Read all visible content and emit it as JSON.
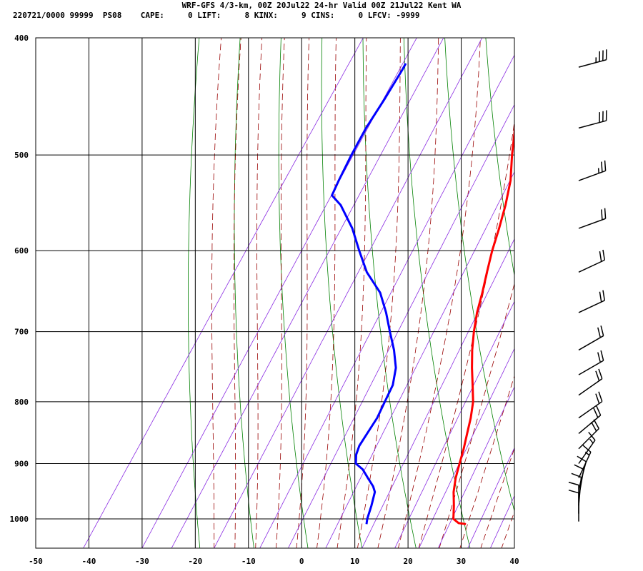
{
  "header": {
    "line1": "WRF-GFS 4/3-km, 00Z 20Jul22 24-hr Valid 00Z 21Jul22 Kent WA",
    "line2": "220721/0000 99999  PS08    CAPE:     0 LIFT:     8 KINX:     9 CINS:     0 LFCV: -9999"
  },
  "chart_data": {
    "type": "line",
    "title": "",
    "xlabel": "",
    "ylabel": "",
    "xlim": [
      -50,
      40
    ],
    "ylim_pressure": [
      1040,
      400
    ],
    "y_scale": "log-pressure (skew-T)",
    "x_ticks": [
      -50,
      -40,
      -30,
      -20,
      -10,
      0,
      10,
      20,
      30,
      40
    ],
    "y_ticks": [
      400,
      500,
      600,
      700,
      800,
      900,
      1000
    ],
    "grid": true,
    "background_lines": {
      "dry_adiabats_color": "#008000",
      "moist_adiabats_color": "#990000",
      "mixing_ratio_color": "#8a2be2"
    },
    "series": [
      {
        "color": "#ff0000",
        "points": [
          [
            1010,
            28.0
          ],
          [
            1008,
            26.5
          ],
          [
            1000,
            25.0
          ],
          [
            975,
            23.5
          ],
          [
            950,
            21.8
          ],
          [
            925,
            20.5
          ],
          [
            900,
            19.5
          ],
          [
            875,
            18.5
          ],
          [
            850,
            17.3
          ],
          [
            825,
            16.1
          ],
          [
            800,
            14.6
          ],
          [
            775,
            12.5
          ],
          [
            750,
            10.3
          ],
          [
            725,
            8.2
          ],
          [
            700,
            6.3
          ],
          [
            675,
            4.6
          ],
          [
            650,
            3.2
          ],
          [
            625,
            1.6
          ],
          [
            600,
            0.0
          ],
          [
            575,
            -1.4
          ],
          [
            550,
            -3.0
          ],
          [
            525,
            -5.0
          ],
          [
            500,
            -7.8
          ],
          [
            475,
            -10.5
          ],
          [
            450,
            -13.5
          ],
          [
            425,
            -16.5
          ],
          [
            423,
            -16.8
          ]
        ]
      },
      {
        "color": "#0000ff",
        "points": [
          [
            1010,
            9.3
          ],
          [
            1000,
            8.8
          ],
          [
            975,
            8.0
          ],
          [
            950,
            7.0
          ],
          [
            940,
            6.0
          ],
          [
            925,
            4.0
          ],
          [
            910,
            2.0
          ],
          [
            900,
            0.0
          ],
          [
            885,
            -1.0
          ],
          [
            870,
            -1.5
          ],
          [
            850,
            -1.5
          ],
          [
            825,
            -1.5
          ],
          [
            800,
            -2.0
          ],
          [
            775,
            -2.5
          ],
          [
            750,
            -4.0
          ],
          [
            725,
            -6.5
          ],
          [
            700,
            -9.5
          ],
          [
            675,
            -12.5
          ],
          [
            650,
            -16.0
          ],
          [
            625,
            -21.0
          ],
          [
            600,
            -25.0
          ],
          [
            575,
            -29.0
          ],
          [
            550,
            -34.0
          ],
          [
            540,
            -36.8
          ],
          [
            525,
            -37.3
          ],
          [
            500,
            -38.0
          ],
          [
            475,
            -38.5
          ],
          [
            450,
            -38.5
          ],
          [
            425,
            -38.7
          ],
          [
            420,
            -38.8
          ]
        ]
      }
    ],
    "wind_barbs": [
      {
        "p": 423,
        "dir": 255,
        "spd": 35
      },
      {
        "p": 475,
        "dir": 255,
        "spd": 30
      },
      {
        "p": 525,
        "dir": 250,
        "spd": 25
      },
      {
        "p": 575,
        "dir": 250,
        "spd": 20
      },
      {
        "p": 625,
        "dir": 245,
        "spd": 20
      },
      {
        "p": 675,
        "dir": 245,
        "spd": 20
      },
      {
        "p": 725,
        "dir": 240,
        "spd": 20
      },
      {
        "p": 760,
        "dir": 240,
        "spd": 20
      },
      {
        "p": 790,
        "dir": 235,
        "spd": 20
      },
      {
        "p": 825,
        "dir": 235,
        "spd": 20
      },
      {
        "p": 850,
        "dir": 230,
        "spd": 20
      },
      {
        "p": 875,
        "dir": 225,
        "spd": 20
      },
      {
        "p": 900,
        "dir": 215,
        "spd": 15
      },
      {
        "p": 925,
        "dir": 205,
        "spd": 15
      },
      {
        "p": 945,
        "dir": 195,
        "spd": 10
      },
      {
        "p": 960,
        "dir": 190,
        "spd": 10
      },
      {
        "p": 975,
        "dir": 185,
        "spd": 10
      },
      {
        "p": 990,
        "dir": 180,
        "spd": 10
      },
      {
        "p": 1005,
        "dir": 180,
        "spd": 10
      }
    ]
  }
}
